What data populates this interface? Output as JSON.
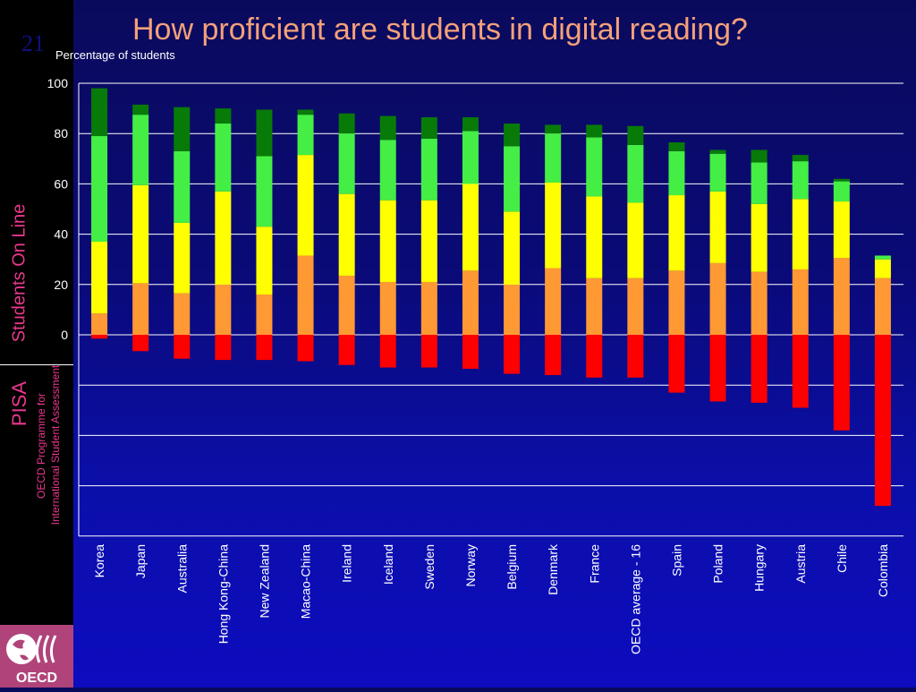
{
  "slide": {
    "number": "21",
    "title": "How proficient are students in digital reading?"
  },
  "sidebar": {
    "students_online": "Students On Line",
    "pisa": "PISA",
    "oecd_line1": "OECD Programme for",
    "oecd_line2": "International Student Assessment",
    "logo_text": "OECD"
  },
  "colors": {
    "below1": "#ff0000",
    "level2": "#ff9933",
    "level3": "#ffff00",
    "level4": "#44ee44",
    "level5": "#087a08",
    "gridline": "#ffffff",
    "title": "#f4a07a",
    "sidebar_text": "#e8388c"
  },
  "chart_data": {
    "type": "bar",
    "stacked": true,
    "ylabel": "Percentage of students",
    "ylim": [
      -80,
      100
    ],
    "ytick_values": [
      0,
      20,
      40,
      60,
      80,
      100
    ],
    "ytick_labels": [
      "0",
      "20",
      "40",
      "60",
      "80",
      "100"
    ],
    "grid": true,
    "categories": [
      "Korea",
      "Japan",
      "Australia",
      "Hong Kong-China",
      "New Zealand",
      "Macao-China",
      "Ireland",
      "Iceland",
      "Sweden",
      "Norway",
      "Belgium",
      "Denmark",
      "France",
      "OECD average - 16",
      "Spain",
      "Poland",
      "Hungary",
      "Austria",
      "Chile",
      "Colombia"
    ],
    "below_zero": [
      -1.5,
      -6.5,
      -9.5,
      -10,
      -10,
      -10.5,
      -12,
      -13,
      -13,
      -13.5,
      -15.5,
      -16,
      -17,
      -17,
      -23,
      -26.5,
      -27,
      -29,
      -38,
      -68
    ],
    "series_above": [
      {
        "key": "level2",
        "values": [
          8.5,
          20.5,
          16.5,
          20,
          16,
          31.5,
          23.5,
          21,
          21,
          25.5,
          20,
          26.5,
          22.5,
          22.5,
          25.5,
          28.5,
          25,
          26,
          30.5,
          22.5
        ]
      },
      {
        "key": "level3",
        "values": [
          28.5,
          39,
          28,
          37,
          27,
          40,
          32.5,
          32.5,
          32.5,
          34.5,
          29,
          34,
          32.5,
          30,
          30,
          28.5,
          27,
          28,
          22.5,
          7.5
        ]
      },
      {
        "key": "level4",
        "values": [
          42,
          28,
          28.5,
          27,
          28,
          16,
          24,
          24,
          24.5,
          21,
          26,
          19.5,
          23.5,
          23,
          17.5,
          15,
          16.5,
          15,
          8,
          1.5
        ]
      },
      {
        "key": "level5",
        "values": [
          19,
          4,
          17.5,
          6,
          18.5,
          2,
          8,
          9.5,
          8.5,
          5.5,
          9,
          3.5,
          5,
          7.5,
          3.5,
          1.5,
          5,
          2.5,
          1,
          0
        ]
      }
    ]
  }
}
